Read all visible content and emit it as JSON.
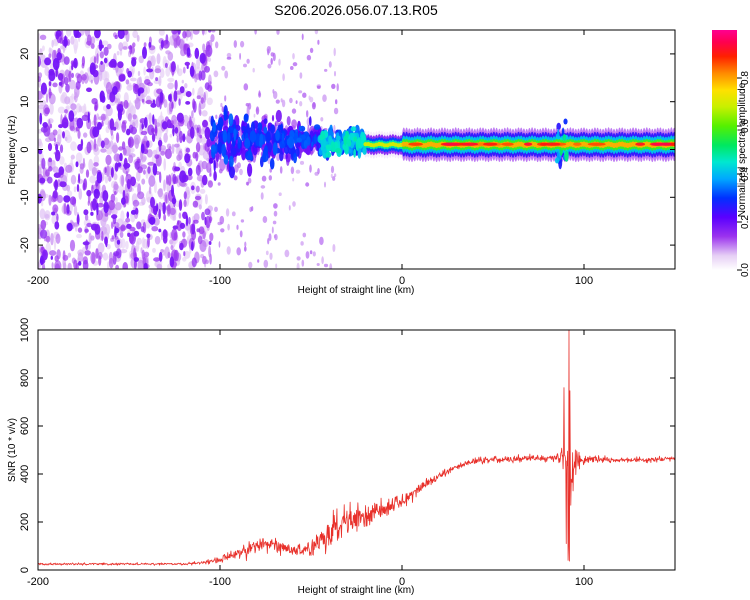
{
  "figure": {
    "title": "S206.2026.056.07.13.R05"
  },
  "chart_data": [
    {
      "type": "heatmap",
      "name": "spectrogram",
      "xlabel": "Height of straight line (km)",
      "ylabel": "Frequency (Hz)",
      "xlim": [
        -200,
        150
      ],
      "ylim": [
        -25,
        25
      ],
      "x_ticks": [
        -200,
        -100,
        0,
        100
      ],
      "y_ticks": [
        -20,
        -10,
        0,
        10,
        20
      ],
      "colorbar": {
        "label": "Normalized spectral amplitude",
        "range": [
          0,
          1
        ],
        "ticks": [
          "0.0",
          "0.2",
          "0.4",
          "0.6",
          "0.8"
        ],
        "tick_values": [
          0.0,
          0.2,
          0.4,
          0.6,
          0.8
        ],
        "colormap": "rainbow: white-lavender -> violet -> blue -> cyan -> green -> yellow -> orange -> red -> magenta"
      },
      "regions": [
        {
          "x_range": [
            -200,
            -105
          ],
          "freq_range": [
            -25,
            25
          ],
          "amplitude": [
            0.0,
            0.15
          ],
          "description": "noise only"
        },
        {
          "x_range": [
            -105,
            -45
          ],
          "freq_range": [
            -12,
            10
          ],
          "amplitude": [
            0.05,
            0.3
          ],
          "description": "onset of carrier, blue-violet"
        },
        {
          "x_range": [
            -45,
            -20
          ],
          "freq_range": [
            -5,
            5
          ],
          "amplitude": [
            0.2,
            0.45
          ],
          "description": "carrier strengthening, cyan"
        },
        {
          "x_range": [
            -20,
            150
          ],
          "freq_range": [
            -1.5,
            2
          ],
          "amplitude": [
            0.4,
            0.95
          ],
          "description": "strong carrier line near +1 Hz"
        }
      ],
      "carrier_frequency_hz": 1,
      "disturbance_height_km": 88
    },
    {
      "type": "line",
      "name": "snr",
      "xlabel": "Height of straight line (km)",
      "ylabel": "SNR (10 * v/v)",
      "xlim": [
        -200,
        150
      ],
      "ylim": [
        0,
        1000
      ],
      "x_ticks": [
        -200,
        -100,
        0,
        100
      ],
      "y_ticks": [
        0,
        200,
        400,
        600,
        800,
        1000
      ],
      "color": "#e8302a",
      "series": [
        {
          "name": "SNR",
          "envelope_x": [
            -200,
            -120,
            -110,
            -100,
            -90,
            -80,
            -70,
            -60,
            -50,
            -40,
            -30,
            -20,
            -10,
            0,
            10,
            20,
            30,
            40,
            50,
            60,
            70,
            80,
            85,
            88,
            90,
            92,
            95,
            100,
            110,
            120,
            130,
            140,
            150
          ],
          "envelope_mean": [
            25,
            25,
            30,
            45,
            70,
            100,
            110,
            80,
            90,
            150,
            200,
            230,
            250,
            290,
            340,
            390,
            430,
            455,
            460,
            460,
            465,
            465,
            470,
            480,
            450,
            400,
            450,
            460,
            460,
            455,
            460,
            460,
            465
          ],
          "envelope_spread": [
            8,
            8,
            12,
            30,
            45,
            60,
            50,
            40,
            60,
            100,
            130,
            100,
            80,
            60,
            40,
            30,
            25,
            25,
            25,
            25,
            25,
            25,
            30,
            60,
            150,
            330,
            110,
            40,
            25,
            20,
            20,
            20,
            20
          ],
          "extremes": [
            {
              "x": 91.2,
              "y": 40
            },
            {
              "x": 91.8,
              "y": 1000
            },
            {
              "x": 89.0,
              "y": 760
            },
            {
              "x": 90.2,
              "y": 110
            }
          ]
        }
      ]
    }
  ]
}
